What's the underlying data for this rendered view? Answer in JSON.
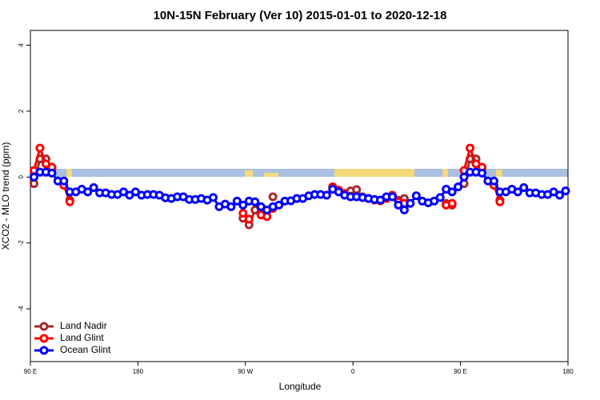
{
  "chart_data": {
    "type": "line",
    "title": "10N-15N February (Ver 10)   2015-01-01 to 2020-12-18",
    "x_label": "Longitude",
    "y_label": "XCO2 - MLO trend (ppm)",
    "x": [
      93,
      98,
      103,
      108,
      113,
      118,
      123,
      128,
      133,
      138,
      143,
      148,
      153,
      158,
      163,
      168,
      173,
      178,
      183,
      188,
      193,
      198,
      203,
      208,
      213,
      218,
      223,
      228,
      233,
      238,
      243,
      248,
      253,
      258,
      263,
      268,
      273,
      278,
      283,
      288,
      293,
      298,
      303,
      308,
      313,
      318,
      323,
      328,
      333,
      338,
      343,
      348,
      353,
      358,
      363,
      368,
      373,
      378,
      383,
      388,
      393,
      398,
      403,
      408,
      413,
      418,
      423,
      428,
      433,
      438,
      443,
      448,
      453,
      458,
      463,
      468,
      473,
      478,
      483,
      488,
      493,
      498,
      503,
      508,
      513,
      518,
      523,
      528,
      533,
      538
    ],
    "series": [
      {
        "name": "Land Nadir",
        "color": "#a52a2a",
        "values": [
          -0.2,
          0.55,
          0.55,
          0.25,
          null,
          null,
          -0.7,
          null,
          null,
          null,
          null,
          null,
          null,
          null,
          null,
          null,
          null,
          null,
          null,
          null,
          null,
          null,
          null,
          null,
          null,
          null,
          null,
          null,
          null,
          null,
          null,
          null,
          null,
          null,
          null,
          -1.25,
          -1.45,
          -1.0,
          null,
          null,
          -0.6,
          null,
          null,
          null,
          null,
          null,
          null,
          null,
          null,
          null,
          -0.3,
          -0.4,
          null,
          -0.42,
          -0.38,
          -0.6,
          null,
          -0.68,
          null,
          null,
          null,
          -0.7,
          -0.65,
          null,
          null,
          null,
          null,
          null,
          null,
          -0.8,
          -0.85,
          null,
          -0.2,
          0.55,
          0.55,
          0.25,
          null,
          null,
          -0.7,
          null,
          null,
          null,
          null,
          null,
          null,
          null,
          null,
          null,
          null,
          null
        ]
      },
      {
        "name": "Land Glint",
        "color": "#ff0000",
        "values": [
          0.2,
          0.88,
          0.4,
          0.3,
          null,
          -0.25,
          -0.75,
          null,
          null,
          null,
          null,
          null,
          null,
          null,
          null,
          null,
          null,
          null,
          null,
          null,
          null,
          null,
          null,
          null,
          null,
          null,
          null,
          null,
          null,
          null,
          null,
          null,
          null,
          null,
          null,
          -1.1,
          -1.28,
          null,
          -1.15,
          -1.2,
          -0.95,
          null,
          null,
          null,
          null,
          null,
          null,
          null,
          null,
          null,
          -0.3,
          -0.4,
          -0.5,
          -0.58,
          -0.6,
          -0.62,
          -0.65,
          -0.7,
          -0.72,
          -0.65,
          -0.55,
          -0.75,
          -0.8,
          null,
          null,
          null,
          null,
          null,
          null,
          -0.85,
          -0.8,
          null,
          0.2,
          0.88,
          0.4,
          0.3,
          null,
          -0.25,
          -0.75,
          null,
          null,
          null,
          null,
          null,
          null,
          null,
          null,
          null,
          null,
          null
        ]
      },
      {
        "name": "Ocean Glint",
        "color": "#0000ff",
        "values": [
          0,
          0.15,
          0.15,
          0.12,
          -0.12,
          -0.12,
          -0.45,
          -0.45,
          -0.37,
          -0.45,
          -0.32,
          -0.48,
          -0.48,
          -0.53,
          -0.53,
          -0.45,
          -0.55,
          -0.45,
          -0.55,
          -0.53,
          -0.53,
          -0.55,
          -0.63,
          -0.65,
          -0.6,
          -0.6,
          -0.68,
          -0.68,
          -0.65,
          -0.7,
          -0.62,
          -0.9,
          -0.82,
          -0.9,
          -0.73,
          -0.85,
          -0.73,
          -0.75,
          -0.9,
          -1.0,
          -0.9,
          -0.85,
          -0.73,
          -0.72,
          -0.65,
          -0.65,
          -0.57,
          -0.53,
          -0.53,
          -0.55,
          -0.37,
          -0.45,
          -0.55,
          -0.6,
          -0.6,
          -0.62,
          -0.65,
          -0.68,
          -0.7,
          -0.6,
          -0.6,
          -0.85,
          -1.0,
          -0.8,
          -0.57,
          -0.73,
          -0.78,
          -0.73,
          -0.62,
          -0.37,
          -0.45,
          -0.3,
          0,
          0.15,
          0.15,
          0.12,
          -0.12,
          -0.12,
          -0.45,
          -0.45,
          -0.37,
          -0.45,
          -0.32,
          -0.48,
          -0.48,
          -0.53,
          -0.53,
          -0.45,
          -0.55,
          -0.42
        ]
      }
    ],
    "xlim": [
      90,
      540
    ],
    "xticks": [
      {
        "value": 90,
        "label": "90 E"
      },
      180,
      {
        "value": 270,
        "label": "90 W"
      },
      {
        "value": 360,
        "label": "0"
      },
      {
        "value": 450,
        "label": "90 E"
      },
      {
        "value": 540,
        "label": "180"
      }
    ],
    "ylim": [
      -5.6,
      4.45
    ],
    "yticks": [
      -4,
      -2,
      0,
      2,
      4
    ],
    "legend": "bottom-left"
  }
}
